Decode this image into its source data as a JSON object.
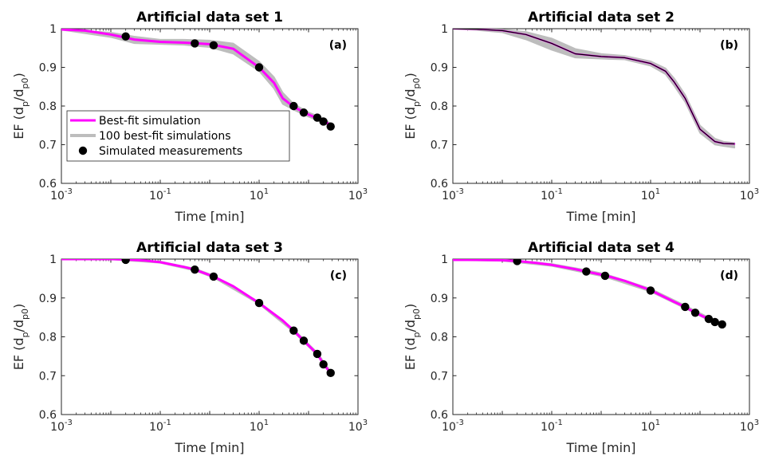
{
  "colors": {
    "best_fit": "#ff00ff",
    "ensemble": "#bdbdbd",
    "measurement": "#000000",
    "axis": "#262626"
  },
  "legend": {
    "items": [
      "Best-fit simulation",
      "100 best-fit simulations",
      "Simulated measurements"
    ],
    "placement": "panel (a), lower-left"
  },
  "chart_data": [
    {
      "type": "line",
      "title": "Artificial data set 1",
      "panel": "(a)",
      "xlabel": "Time [min]",
      "ylabel": "EF (d_p/d_p0)",
      "xscale": "log",
      "xlim": [
        0.001,
        1000
      ],
      "ylim": [
        0.6,
        1.0
      ],
      "x_ticks": [
        "10^-3",
        "10^-1",
        "10^1",
        "10^3"
      ],
      "y_ticks": [
        "0.6",
        "0.7",
        "0.8",
        "0.9",
        "1"
      ],
      "best_fit": {
        "x": [
          0.001,
          0.003,
          0.01,
          0.03,
          0.1,
          0.3,
          1,
          3,
          10,
          20,
          30,
          50,
          100,
          200,
          300
        ],
        "y": [
          0.998,
          0.995,
          0.985,
          0.972,
          0.966,
          0.964,
          0.96,
          0.948,
          0.9,
          0.86,
          0.82,
          0.798,
          0.778,
          0.762,
          0.748
        ]
      },
      "ensemble": {
        "x": [
          0.001,
          0.01,
          0.03,
          0.1,
          0.3,
          1,
          3,
          10,
          20,
          30,
          50,
          100,
          200,
          300
        ],
        "y_low": [
          0.997,
          0.978,
          0.962,
          0.96,
          0.958,
          0.952,
          0.935,
          0.89,
          0.845,
          0.805,
          0.79,
          0.772,
          0.756,
          0.744
        ],
        "y_high": [
          0.999,
          0.99,
          0.98,
          0.972,
          0.972,
          0.97,
          0.962,
          0.915,
          0.875,
          0.835,
          0.806,
          0.784,
          0.768,
          0.752
        ]
      },
      "measurements": {
        "x": [
          0.02,
          0.5,
          1.2,
          10,
          50,
          80,
          150,
          200,
          280
        ],
        "y": [
          0.98,
          0.962,
          0.957,
          0.9,
          0.8,
          0.783,
          0.77,
          0.76,
          0.747
        ]
      },
      "legend": true
    },
    {
      "type": "line",
      "title": "Artificial data set 2",
      "panel": "(b)",
      "xlabel": "Time [min]",
      "ylabel": "EF (d_p/d_p0)",
      "xscale": "log",
      "xlim": [
        0.001,
        1000
      ],
      "ylim": [
        0.6,
        1.0
      ],
      "x_ticks": [
        "10^-3",
        "10^-1",
        "10^1",
        "10^3"
      ],
      "y_ticks": [
        "0.6",
        "0.7",
        "0.8",
        "0.9",
        "1"
      ],
      "best_fit": {
        "x": [
          0.001,
          0.003,
          0.01,
          0.03,
          0.1,
          0.3,
          1,
          3,
          10,
          20,
          30,
          50,
          100,
          200,
          300,
          500
        ],
        "y": [
          1.0,
          0.999,
          0.995,
          0.985,
          0.962,
          0.935,
          0.928,
          0.925,
          0.91,
          0.89,
          0.862,
          0.82,
          0.74,
          0.708,
          0.703,
          0.702
        ]
      },
      "ensemble": {
        "x": [
          0.001,
          0.003,
          0.01,
          0.03,
          0.1,
          0.3,
          1,
          3,
          10,
          20,
          30,
          50,
          100,
          200,
          300,
          500
        ],
        "y_low": [
          0.999,
          0.996,
          0.99,
          0.972,
          0.945,
          0.925,
          0.922,
          0.92,
          0.904,
          0.882,
          0.852,
          0.81,
          0.73,
          0.7,
          0.696,
          0.692
        ],
        "y_high": [
          1.0,
          1.0,
          0.998,
          0.992,
          0.975,
          0.948,
          0.935,
          0.93,
          0.916,
          0.898,
          0.872,
          0.83,
          0.75,
          0.716,
          0.708,
          0.705
        ]
      },
      "measurements": {
        "x": [],
        "y": []
      },
      "legend": false
    },
    {
      "type": "line",
      "title": "Artificial data set 3",
      "panel": "(c)",
      "xlabel": "Time [min]",
      "ylabel": "EF (d_p/d_p0)",
      "xscale": "log",
      "xlim": [
        0.001,
        1000
      ],
      "ylim": [
        0.6,
        1.0
      ],
      "x_ticks": [
        "10^-3",
        "10^-1",
        "10^1",
        "10^3"
      ],
      "y_ticks": [
        "0.6",
        "0.7",
        "0.8",
        "0.9",
        "1"
      ],
      "best_fit": {
        "x": [
          0.001,
          0.003,
          0.01,
          0.02,
          0.05,
          0.1,
          0.3,
          0.5,
          1.2,
          3,
          10,
          30,
          50,
          80,
          150,
          200,
          280
        ],
        "y": [
          1.0,
          1.0,
          1.0,
          0.999,
          0.996,
          0.992,
          0.98,
          0.973,
          0.955,
          0.93,
          0.887,
          0.842,
          0.816,
          0.79,
          0.756,
          0.73,
          0.707
        ]
      },
      "ensemble": {
        "x": [
          0.001,
          0.01,
          0.1,
          0.5,
          1.2,
          10,
          50,
          150,
          280
        ],
        "y_low": [
          0.999,
          0.999,
          0.99,
          0.97,
          0.952,
          0.884,
          0.812,
          0.752,
          0.703
        ],
        "y_high": [
          1.0,
          1.0,
          0.994,
          0.976,
          0.958,
          0.89,
          0.82,
          0.76,
          0.711
        ]
      },
      "measurements": {
        "x": [
          0.02,
          0.5,
          1.2,
          10,
          50,
          80,
          150,
          200,
          280
        ],
        "y": [
          0.998,
          0.973,
          0.955,
          0.887,
          0.816,
          0.79,
          0.756,
          0.729,
          0.707
        ]
      },
      "legend": false
    },
    {
      "type": "line",
      "title": "Artificial data set 4",
      "panel": "(d)",
      "xlabel": "Time [min]",
      "ylabel": "EF (d_p/d_p0)",
      "xscale": "log",
      "xlim": [
        0.001,
        1000
      ],
      "ylim": [
        0.6,
        1.0
      ],
      "x_ticks": [
        "10^-3",
        "10^-1",
        "10^1",
        "10^3"
      ],
      "y_ticks": [
        "0.6",
        "0.7",
        "0.8",
        "0.9",
        "1"
      ],
      "best_fit": {
        "x": [
          0.001,
          0.003,
          0.01,
          0.02,
          0.05,
          0.1,
          0.3,
          0.5,
          1.2,
          3,
          10,
          30,
          50,
          80,
          150,
          200,
          280
        ],
        "y": [
          0.998,
          0.998,
          0.997,
          0.995,
          0.99,
          0.985,
          0.974,
          0.968,
          0.958,
          0.944,
          0.92,
          0.89,
          0.877,
          0.862,
          0.846,
          0.838,
          0.832
        ]
      },
      "ensemble": {
        "x": [
          0.001,
          0.01,
          0.1,
          0.5,
          1.2,
          10,
          50,
          150,
          280
        ],
        "y_low": [
          0.997,
          0.995,
          0.982,
          0.964,
          0.954,
          0.916,
          0.873,
          0.842,
          0.828
        ],
        "y_high": [
          0.999,
          0.999,
          0.988,
          0.972,
          0.962,
          0.924,
          0.881,
          0.85,
          0.836
        ]
      },
      "measurements": {
        "x": [
          0.02,
          0.5,
          1.2,
          10,
          50,
          80,
          150,
          200,
          280
        ],
        "y": [
          0.995,
          0.968,
          0.957,
          0.919,
          0.877,
          0.862,
          0.846,
          0.838,
          0.832
        ]
      },
      "legend": false
    }
  ]
}
